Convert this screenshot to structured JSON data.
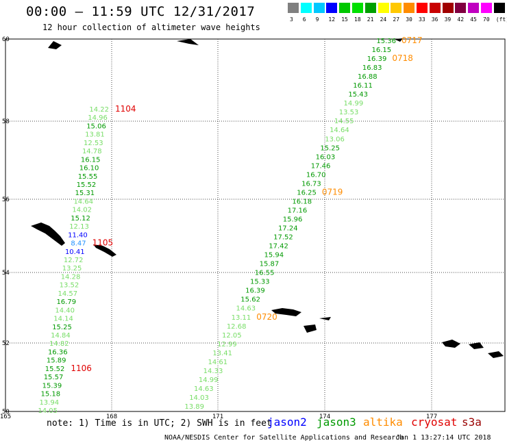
{
  "header": {
    "title": "00:00 – 11:59 UTC 12/31/2017",
    "subtitle": "12 hour collection of altimeter wave heights"
  },
  "color_scale": {
    "colors": [
      "#808080",
      "#00ffff",
      "#00c8ff",
      "#0000ff",
      "#00c800",
      "#00e000",
      "#00a000",
      "#ffff00",
      "#ffc800",
      "#ff8c00",
      "#ff0000",
      "#c80000",
      "#a00000",
      "#800040",
      "#c000c0",
      "#ff00ff",
      "#000000"
    ],
    "labels": [
      "3",
      "6",
      "9",
      "12",
      "15",
      "18",
      "21",
      "24",
      "27",
      "30",
      "33",
      "36",
      "39",
      "42",
      "45",
      "70",
      "(ft)"
    ]
  },
  "axes": {
    "lon_labels": [
      "165",
      "168",
      "171",
      "174",
      "177"
    ],
    "lat_labels": [
      "60",
      "58",
      "56",
      "54",
      "52",
      "50"
    ]
  },
  "colors": {
    "jason2": "#0000ff",
    "jason3": "#009900",
    "altika": "#ff8c00",
    "cryosat": "#e00000",
    "light_green": "#77dd66",
    "green": "#009900",
    "blue": "#0000ff",
    "cyan_blue": "#1e90ff"
  },
  "tracks": [
    {
      "time_label": "0717",
      "time_color": "#ff8c00",
      "values": [
        "15.36",
        "16.15",
        "16.39",
        "16.83",
        "16.88",
        "16.11",
        "15.43",
        "14.99",
        "13.53",
        "14.55",
        "14.64",
        "13.06",
        "15.25",
        "16.03",
        "17.46",
        "16.70",
        "16.73",
        "16.25",
        "16.18",
        "17.16",
        "15.96",
        "17.24",
        "17.52",
        "17.42",
        "15.94",
        "15.87",
        "16.55",
        "15.33",
        "16.39",
        "15.62",
        "14.63",
        "13.11",
        "12.68",
        "12.05",
        "12.99",
        "13.41",
        "14.61",
        "14.33",
        "14.99",
        "14.63",
        "14.03",
        "13.89"
      ],
      "marks": [
        {
          "label": "0718",
          "after_index": 2
        },
        {
          "label": "0719",
          "after_index": 17
        },
        {
          "label": "0720",
          "after_index": 31
        }
      ]
    },
    {
      "time_label": "1104",
      "time_color": "#e00000",
      "values": [
        "14.22",
        "14.96",
        "15.06",
        "13.81",
        "12.53",
        "14.78",
        "16.15",
        "16.10",
        "15.55",
        "15.52",
        "15.31",
        "14.64",
        "14.02",
        "15.12",
        "12.13",
        "11.40",
        "8.47",
        "10.41",
        "12.72",
        "13.25",
        "14.28",
        "13.52",
        "14.57",
        "16.79",
        "14.40",
        "14.14",
        "15.25",
        "14.84",
        "14.82",
        "16.36",
        "15.89",
        "15.52",
        "15.57",
        "15.39",
        "15.18",
        "13.94",
        "14.05"
      ],
      "marks": [
        {
          "label": "1105",
          "after_index": 16
        },
        {
          "label": "1106",
          "after_index": 31
        }
      ]
    }
  ],
  "footer": {
    "note": "note: 1) Time is in UTC; 2) SWH is in feet",
    "satellites": [
      "jason2",
      "jason3",
      "altika",
      "cryosat",
      "s3a"
    ],
    "credit": "NOAA/NESDIS Center for Satellite Applications and Research",
    "timestamp": "Jan  1 13:27:14 UTC 2018"
  }
}
